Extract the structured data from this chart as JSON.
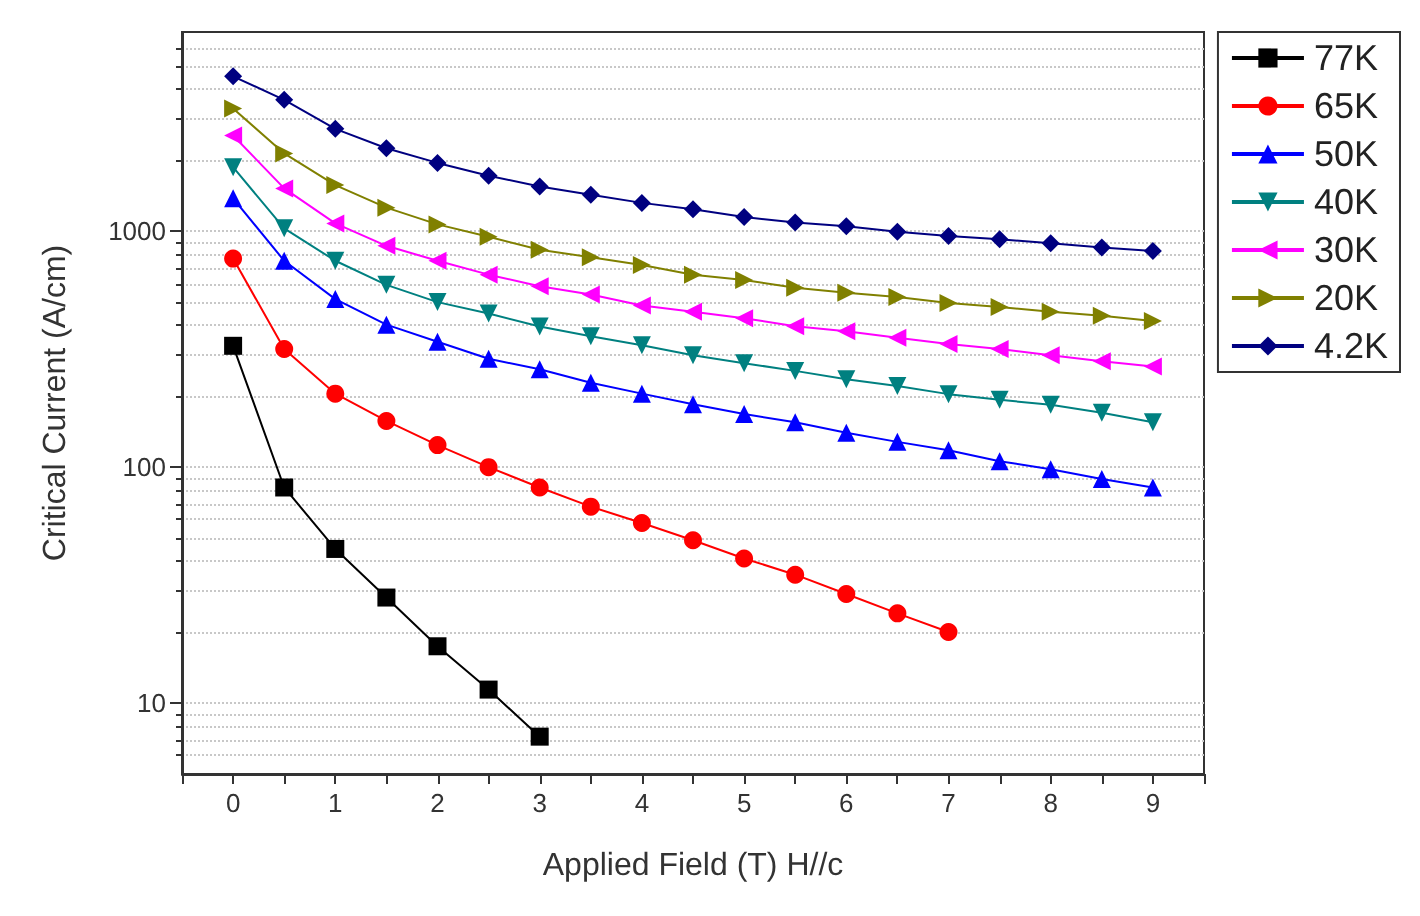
{
  "chart_data": {
    "type": "line",
    "xlabel": "Applied Field (T) H//c",
    "ylabel": "Critical Current (A/cm)",
    "log": "y",
    "grid": "y",
    "legend": "top right",
    "xlim": [
      -0.5,
      9.5
    ],
    "ylim": [
      5,
      7000
    ],
    "xticks": [
      {
        "value": -0.5,
        "label": null
      },
      0,
      {
        "value": 0.5,
        "label": null
      },
      1,
      {
        "value": 1.5,
        "label": null
      },
      2,
      {
        "value": 2.5,
        "label": null
      },
      3,
      {
        "value": 3.5,
        "label": null
      },
      4,
      {
        "value": 4.5,
        "label": null
      },
      5,
      {
        "value": 5.5,
        "label": null
      },
      6,
      {
        "value": 6.5,
        "label": null
      },
      7,
      {
        "value": 7.5,
        "label": null
      },
      8,
      {
        "value": 8.5,
        "label": null
      },
      9,
      {
        "value": 9.5,
        "label": null
      }
    ],
    "yticks": [
      10,
      100,
      1000
    ],
    "x": [
      0,
      0.5,
      1,
      1.5,
      2,
      2.5,
      3,
      3.5,
      4,
      4.5,
      5,
      5.5,
      6,
      6.5,
      7,
      7.5,
      8,
      8.5,
      9
    ],
    "series": [
      {
        "name": "77K",
        "color": "#000000",
        "marker": "square",
        "values": [
          327,
          82,
          45,
          28,
          17.4,
          11.4,
          7.2,
          null,
          null,
          null,
          null,
          null,
          null,
          null,
          null,
          null,
          null,
          null,
          null
        ]
      },
      {
        "name": "65K",
        "color": "#ff0000",
        "marker": "circle",
        "values": [
          766,
          317,
          205,
          157,
          124,
          100,
          82,
          68,
          58,
          49,
          41,
          35,
          29,
          24,
          20,
          null,
          null,
          null,
          null
        ]
      },
      {
        "name": "50K",
        "color": "#0000ff",
        "marker": "triangle",
        "values": [
          1380,
          750,
          516,
          402,
          340,
          288,
          260,
          228,
          205,
          185,
          168,
          155,
          140,
          128,
          118,
          106,
          98,
          89,
          82
        ]
      },
      {
        "name": "40K",
        "color": "#008080",
        "marker": "triangle-down",
        "values": [
          1870,
          1030,
          750,
          593,
          501,
          448,
          395,
          359,
          329,
          298,
          276,
          256,
          236,
          221,
          204,
          193,
          184,
          170,
          155
        ]
      },
      {
        "name": "30K",
        "color": "#ff00ff",
        "marker": "triangle-left",
        "values": [
          2550,
          1520,
          1080,
          868,
          750,
          655,
          585,
          540,
          485,
          456,
          428,
          396,
          377,
          354,
          333,
          317,
          298,
          281,
          267
        ]
      },
      {
        "name": "20K",
        "color": "#808000",
        "marker": "triangle-right",
        "values": [
          3320,
          2140,
          1570,
          1260,
          1070,
          948,
          836,
          776,
          719,
          655,
          622,
          577,
          549,
          526,
          497,
          478,
          456,
          439,
          417
        ]
      },
      {
        "name": "4.2K",
        "color": "#000080",
        "marker": "diamond",
        "values": [
          4540,
          3610,
          2720,
          2250,
          1950,
          1720,
          1550,
          1430,
          1320,
          1240,
          1150,
          1090,
          1050,
          995,
          955,
          925,
          890,
          853,
          826
        ]
      }
    ]
  }
}
